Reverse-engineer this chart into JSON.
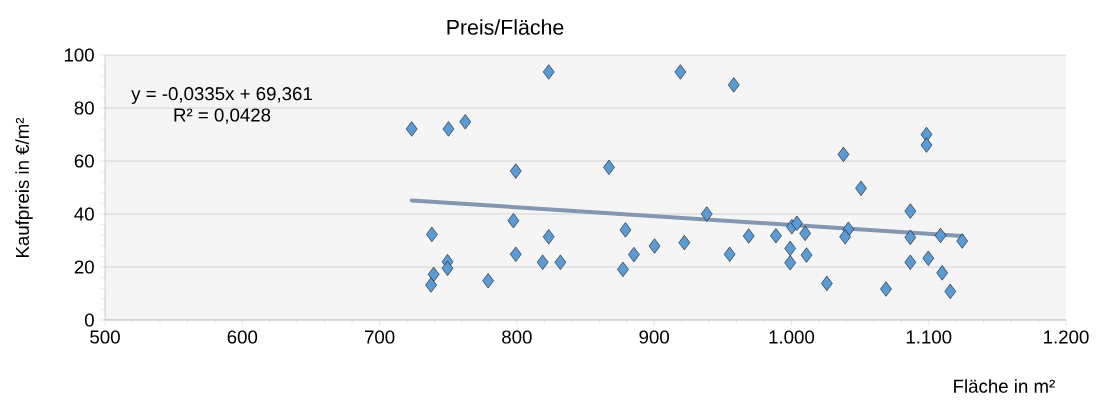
{
  "chart_data": {
    "type": "scatter",
    "title": "Preis/Fläche",
    "xlabel": "Fläche in m²",
    "ylabel": "Kaufpreis in €/m²",
    "annotations": [
      "y = -0,0335x + 69,361",
      "R² = 0,0428"
    ],
    "xlim": [
      500,
      1200
    ],
    "ylim": [
      0,
      100
    ],
    "xticks": [
      500,
      600,
      700,
      800,
      900,
      {
        "value": 1000,
        "label": "1.000"
      },
      {
        "value": 1100,
        "label": "1.100"
      },
      {
        "value": 1200,
        "label": "1.200"
      }
    ],
    "yticks": [
      0,
      20,
      40,
      60,
      80,
      100
    ],
    "grid": "y",
    "marker": "diamond",
    "series": [
      {
        "color": "#5b9bd5",
        "x": [
          723.4,
          750.2,
          762.4,
          823.2,
          919.1,
          958,
          799.2,
          867.1,
          738.1,
          797.5,
          823.2,
          879.1,
          938.3,
          922,
          968.9,
          749.5,
          749.5,
          739.4,
          737.5,
          779.1,
          799.2,
          818.8,
          831.7,
          877.3,
          885.3,
          900.3,
          955,
          1098.4,
          1098.4,
          1037.9,
          1050.7,
          1086.6,
          988.7,
          1000.3,
          1004,
          1010,
          999.1,
          999.1,
          1011,
          1025.8,
          1041.5,
          1039.1,
          1068.9,
          1086.6,
          1086.6,
          1099.7,
          1108.6,
          1109.8,
          1115.7,
          1124.4
        ],
        "values": [
          72.1,
          72.1,
          74.8,
          93.6,
          93.6,
          88.7,
          56.2,
          57.6,
          32.3,
          37.5,
          31.4,
          34,
          40,
          29.2,
          31.7,
          22,
          19.5,
          17.2,
          13.2,
          14.8,
          24.8,
          21.8,
          21.8,
          19.1,
          24.7,
          27.9,
          24.8,
          70,
          66,
          62.5,
          49.7,
          41.1,
          31.8,
          35.2,
          36.5,
          32.7,
          27,
          21.6,
          24.5,
          13.8,
          34.2,
          31.4,
          11.7,
          31.2,
          21.8,
          23.3,
          31.9,
          17.8,
          10.8,
          29.8
        ]
      },
      {
        "type": "line",
        "color": "#8497b0",
        "marker": "none",
        "x": [
          723.4,
          1124.4
        ],
        "values": [
          45.1,
          31.7
        ]
      }
    ]
  }
}
